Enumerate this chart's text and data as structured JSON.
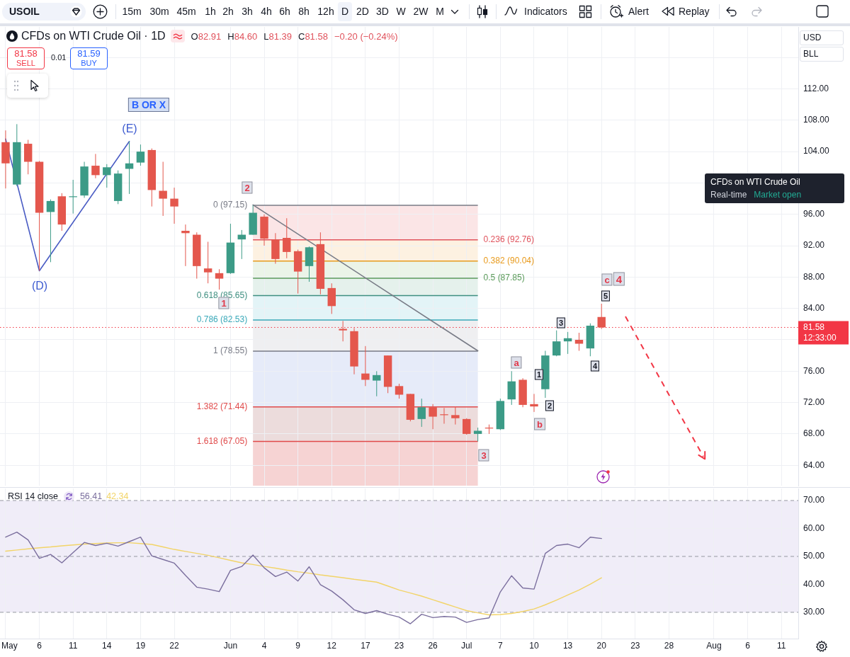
{
  "chart_data": [
    {
      "type": "candlestick",
      "title": "CFDs on WTI Crude Oil · 1D",
      "categories": [
        null,
        null,
        null,
        null,
        null,
        null,
        null,
        null,
        null,
        null,
        null,
        null,
        null,
        null,
        null,
        null,
        null,
        null,
        null,
        null,
        null,
        null,
        null,
        null,
        null,
        null,
        null,
        null,
        null,
        null,
        null,
        null,
        null,
        null,
        null,
        null,
        null,
        null,
        null,
        null,
        null,
        null,
        null,
        null,
        null,
        null,
        null,
        null,
        null,
        null,
        null,
        null,
        null,
        null,
        null,
        null,
        null,
        null,
        null,
        null,
        null,
        null,
        null,
        null,
        null,
        null,
        null,
        null,
        null,
        null,
        null
      ],
      "ohlc": [
        [
          105.2,
          106.7,
          99.3,
          102.5
        ],
        [
          99.8,
          107.5,
          99.6,
          105.2
        ],
        [
          105.0,
          105.5,
          101.1,
          102.7
        ],
        [
          102.7,
          102.8,
          88.8,
          96.2
        ],
        [
          96.3,
          97.9,
          89.9,
          97.7
        ],
        [
          98.3,
          98.7,
          93.9,
          94.7
        ],
        [
          98.2,
          100.4,
          96.1,
          98.3
        ],
        [
          98.4,
          102.7,
          98.1,
          102.1
        ],
        [
          102.2,
          103.7,
          100.6,
          101.0
        ],
        [
          101.0,
          102.4,
          99.4,
          102.0
        ],
        [
          97.7,
          101.6,
          97.3,
          101.2
        ],
        [
          101.8,
          105.3,
          98.6,
          102.5
        ],
        [
          102.6,
          104.9,
          102.2,
          104.0
        ],
        [
          104.2,
          104.4,
          97.0,
          99.1
        ],
        [
          99.0,
          102.7,
          95.8,
          98.0
        ],
        [
          98.0,
          99.4,
          94.8,
          97.0
        ],
        [
          93.9,
          94.7,
          89.4,
          93.6
        ],
        [
          93.4,
          93.7,
          87.8,
          89.4
        ],
        [
          89.1,
          92.5,
          87.2,
          88.6
        ],
        [
          88.5,
          89.0,
          86.4,
          87.8
        ],
        [
          88.5,
          94.8,
          88.4,
          92.4
        ],
        [
          92.8,
          94.0,
          90.3,
          93.4
        ],
        [
          93.4,
          97.15,
          93.4,
          96.2
        ],
        [
          95.7,
          96.0,
          92.0,
          92.9
        ],
        [
          92.8,
          93.6,
          89.7,
          90.3
        ],
        [
          93.0,
          95.5,
          90.4,
          91.2
        ],
        [
          91.3,
          91.5,
          85.9,
          88.7
        ],
        [
          89.4,
          91.9,
          87.4,
          91.8
        ],
        [
          92.2,
          93.7,
          85.8,
          86.5
        ],
        [
          86.6,
          87.2,
          83.3,
          84.3
        ],
        [
          81.4,
          82.4,
          79.8,
          81.2
        ],
        [
          81.1,
          81.5,
          75.6,
          76.6
        ],
        [
          75.7,
          79.2,
          74.1,
          74.9
        ],
        [
          74.8,
          76.0,
          72.8,
          75.5
        ],
        [
          78.0,
          78.0,
          73.2,
          74.0
        ],
        [
          74.1,
          74.4,
          72.5,
          73.0
        ],
        [
          73.1,
          73.1,
          69.6,
          69.8
        ],
        [
          69.9,
          72.5,
          68.9,
          71.4
        ],
        [
          71.4,
          71.8,
          68.6,
          70.2
        ],
        [
          70.5,
          71.3,
          69.3,
          70.4
        ],
        [
          70.4,
          71.5,
          69.2,
          70.0
        ],
        [
          69.9,
          70.0,
          67.9,
          68.0
        ],
        [
          68.0,
          68.8,
          67.05,
          68.4
        ],
        [
          68.8,
          69.2,
          68.0,
          68.7
        ],
        [
          68.6,
          72.5,
          68.5,
          72.2
        ],
        [
          72.4,
          76.0,
          71.7,
          74.7
        ],
        [
          74.9,
          75.1,
          71.4,
          71.7
        ],
        [
          71.8,
          73.1,
          70.8,
          71.5
        ],
        [
          73.7,
          78.6,
          72.6,
          78.0
        ],
        [
          78.0,
          81.2,
          77.9,
          79.8
        ],
        [
          79.8,
          81.0,
          78.2,
          80.2
        ],
        [
          80.0,
          80.9,
          78.6,
          79.5
        ],
        [
          78.9,
          82.1,
          77.9,
          81.8
        ],
        [
          82.91,
          84.6,
          81.39,
          81.58
        ],
        null,
        null,
        null,
        null,
        null,
        null,
        null,
        null,
        null,
        null,
        null,
        null,
        null,
        null,
        null,
        null,
        null
      ],
      "colors": [
        "#e4574d",
        "#3c9b87",
        "#e4574d",
        "#e4574d",
        "#3c9b87",
        "#e4574d",
        "#3c9b87",
        "#3c9b87",
        "#e4574d",
        "#3c9b87",
        "#3c9b87",
        "#3c9b87",
        "#3c9b87",
        "#e4574d",
        "#e4574d",
        "#e4574d",
        "#e4574d",
        "#e4574d",
        "#e4574d",
        "#e4574d",
        "#3c9b87",
        "#3c9b87",
        "#3c9b87",
        "#e4574d",
        "#e4574d",
        "#e4574d",
        "#e4574d",
        "#3c9b87",
        "#e4574d",
        "#e4574d",
        "#e4574d",
        "#e4574d",
        "#e4574d",
        "#3c9b87",
        "#e4574d",
        "#e4574d",
        "#e4574d",
        "#3c9b87",
        "#e4574d",
        "#e4574d",
        "#e4574d",
        "#e4574d",
        "#3c9b87",
        "#e4574d",
        "#3c9b87",
        "#3c9b87",
        "#e4574d",
        "#e4574d",
        "#3c9b87",
        "#3c9b87",
        "#3c9b87",
        "#e4574d",
        "#3c9b87",
        "#e4574d",
        null,
        null,
        null,
        null,
        null,
        null,
        null,
        null,
        null,
        null,
        null,
        null,
        null,
        null,
        null,
        null,
        null
      ],
      "series": [
        {
          "type": "line",
          "values": [
            null,
            null,
            null,
            null,
            null,
            null,
            null,
            null,
            null,
            null,
            null,
            null,
            null,
            null,
            null,
            null,
            null,
            null,
            null,
            null,
            null,
            null,
            97.2,
            null,
            null,
            null,
            null,
            null,
            null,
            null,
            null,
            null,
            null,
            null,
            null,
            null,
            null,
            null,
            null,
            null,
            null,
            null,
            78.6,
            null,
            null,
            null,
            null,
            null,
            null,
            null,
            null,
            null,
            null,
            null,
            null,
            null,
            null,
            null,
            null,
            null,
            null,
            null,
            null,
            null,
            null,
            null,
            null,
            null,
            null,
            null,
            null
          ],
          "color": "#787b86"
        },
        {
          "type": "line",
          "values": [
            105.6,
            null,
            null,
            88.8,
            null,
            null,
            null,
            null,
            null,
            null,
            null,
            105.3,
            null,
            null,
            null,
            null,
            null,
            null,
            null,
            null,
            null,
            null,
            null,
            null,
            null,
            null,
            null,
            null,
            null,
            null,
            null,
            null,
            null,
            null,
            null,
            null,
            null,
            null,
            null,
            null,
            null,
            null,
            null,
            null,
            null,
            null,
            null,
            null,
            null,
            null,
            null,
            null,
            null,
            null,
            null,
            null,
            null,
            null,
            null,
            null,
            null,
            null,
            null,
            null,
            null,
            null,
            null,
            null,
            null,
            null,
            null
          ],
          "color": "#4a5cc4"
        }
      ],
      "ylim": [
        61.4,
        119.9
      ],
      "yticks": [
        {
          "value": 64,
          "label": "64.00"
        },
        {
          "value": 68,
          "label": "68.00"
        },
        {
          "value": 72,
          "label": "72.00"
        },
        {
          "value": 76,
          "label": "76.00"
        },
        {
          "value": 80,
          "label": null
        },
        {
          "value": 84,
          "label": "84.00"
        },
        {
          "value": 88,
          "label": "88.00"
        },
        {
          "value": 92,
          "label": "92.00"
        },
        {
          "value": 96,
          "label": "96.00"
        },
        {
          "value": 100,
          "label": null
        },
        {
          "value": 104,
          "label": "104.00"
        },
        {
          "value": 108,
          "label": "108.00"
        },
        {
          "value": 112,
          "label": "112.00"
        },
        {
          "value": 116,
          "label": null
        }
      ],
      "tick_labels": "y",
      "grid": true,
      "bands": [
        {
          "axis": "y",
          "from": 97.15,
          "to": 92.76,
          "color": "#fbe5e6"
        },
        {
          "axis": "y",
          "from": 92.76,
          "to": 90.04,
          "color": "#fdf1e1"
        },
        {
          "axis": "y",
          "from": 90.04,
          "to": 87.85,
          "color": "#ebf4e8"
        },
        {
          "axis": "y",
          "from": 87.85,
          "to": 85.65,
          "color": "#e5f1ec"
        },
        {
          "axis": "y",
          "from": 85.65,
          "to": 82.53,
          "color": "#e3f4f7"
        },
        {
          "axis": "y",
          "from": 82.53,
          "to": 78.55,
          "color": "#efeff1"
        },
        {
          "axis": "y",
          "from": 78.55,
          "to": 71.44,
          "color": "#e6ebf9"
        },
        {
          "axis": "y",
          "from": 71.44,
          "to": 67.05,
          "color": "#ecdcdc"
        },
        {
          "axis": "y",
          "from": 67.05,
          "to": 61.4,
          "color": "#f6d3d3"
        }
      ],
      "ref_lines": [
        {
          "axis": "y",
          "value": 97.15,
          "label": "0 (97.15)",
          "color": "#787b86"
        },
        {
          "axis": "y",
          "value": 92.76,
          "label": "0.236 (92.76)",
          "color": "#e0525c"
        },
        {
          "axis": "y",
          "value": 90.04,
          "label": "0.382 (90.04)",
          "color": "#e89a1c"
        },
        {
          "axis": "y",
          "value": 87.85,
          "label": "0.5 (87.85)",
          "color": "#5a9a5a"
        },
        {
          "axis": "y",
          "value": 85.65,
          "label": "0.618 (85.65)",
          "color": "#3f8f80"
        },
        {
          "axis": "y",
          "value": 82.53,
          "label": "0.786 (82.53)",
          "color": "#3aa9b9"
        },
        {
          "axis": "y",
          "value": 78.55,
          "label": "1 (78.55)",
          "color": "#787b86"
        },
        {
          "axis": "y",
          "value": 71.44,
          "label": "1.382 (71.44)",
          "color": "#e04a4a"
        },
        {
          "axis": "y",
          "value": 67.05,
          "label": "1.618 (67.05)",
          "color": "#e04a4a"
        },
        {
          "axis": "y",
          "value": 81.58,
          "label": "81.58",
          "color": "#f23645",
          "line_style": "dotted"
        }
      ],
      "annotations": [
        "USOIL",
        "15m",
        "30m",
        "45m",
        "1h",
        "2h",
        "3h",
        "4h",
        "6h",
        "8h",
        "12h",
        "D",
        "2D",
        "3D",
        "W",
        "2W",
        "M",
        "Indicators",
        "Alert",
        "Replay",
        "O82.91",
        "H84.60",
        "L81.39",
        "C81.58",
        "−0.20 (−0.24%)",
        "81.58",
        "SELL",
        "0.01",
        "81.59",
        "BUY",
        "USD",
        "BLL",
        "CFDs on WTI Crude Oil",
        "Real-time",
        "Market open",
        "12:33:00",
        "B OR X",
        "(E)",
        "(D)",
        "2",
        "1",
        "3",
        "a",
        "b",
        "c",
        "4",
        "1",
        "2",
        "3",
        "4",
        "5"
      ]
    },
    {
      "type": "line",
      "title": "RSI 14 close",
      "categories": [
        "May",
        null,
        null,
        "6",
        null,
        null,
        "11",
        null,
        null,
        "14",
        null,
        null,
        "19",
        null,
        null,
        "22",
        null,
        null,
        null,
        null,
        "Jun",
        null,
        null,
        "4",
        null,
        null,
        "9",
        null,
        null,
        "12",
        null,
        null,
        "17",
        null,
        null,
        "23",
        null,
        null,
        "26",
        null,
        null,
        "Jul",
        null,
        null,
        "7",
        null,
        null,
        "10",
        null,
        null,
        "13",
        null,
        null,
        "20",
        null,
        null,
        "23",
        null,
        null,
        "28",
        null,
        null,
        null,
        "Aug",
        null,
        null,
        "6",
        null,
        null,
        "11",
        null
      ],
      "series": [
        {
          "values": [
            56.9,
            58.7,
            55.9,
            49.3,
            50.7,
            47.7,
            51.4,
            55.0,
            53.9,
            54.7,
            53.7,
            55.3,
            56.9,
            50.2,
            48.9,
            47.6,
            43.2,
            39.0,
            38.3,
            37.4,
            45.0,
            46.4,
            50.5,
            45.9,
            42.8,
            44.4,
            41.2,
            46.3,
            39.9,
            37.6,
            34.5,
            30.9,
            29.6,
            30.6,
            29.3,
            28.3,
            25.9,
            29.3,
            28.1,
            28.5,
            28.3,
            26.4,
            27.4,
            28.0,
            37.3,
            43.1,
            38.7,
            38.3,
            51.1,
            53.9,
            54.4,
            53.1,
            56.9,
            56.41,
            null,
            null,
            null,
            null,
            null,
            null,
            null,
            null,
            null,
            null,
            null,
            null,
            null,
            null,
            null,
            null,
            null
          ],
          "color": "#7b6f9e"
        },
        {
          "values": [
            51.9,
            52.3,
            52.7,
            53.1,
            53.4,
            53.8,
            54.1,
            54.4,
            54.6,
            54.8,
            54.9,
            54.9,
            54.6,
            54.3,
            53.4,
            52.5,
            51.8,
            51.1,
            50.4,
            49.5,
            48.6,
            47.7,
            47.1,
            46.4,
            45.8,
            45.1,
            44.5,
            44.0,
            43.4,
            42.9,
            42.4,
            41.8,
            41.3,
            40.8,
            39.4,
            38.0,
            36.9,
            35.8,
            34.5,
            33.2,
            31.9,
            30.6,
            29.8,
            29.1,
            29.2,
            29.6,
            30.3,
            31.2,
            32.7,
            34.4,
            36.2,
            38.0,
            40.1,
            42.34,
            null,
            null,
            null,
            null,
            null,
            null,
            null,
            null,
            null,
            null,
            null,
            null,
            null,
            null,
            null,
            null,
            null
          ],
          "color": "#f2d468"
        }
      ],
      "ylim": [
        20.6,
        74.3
      ],
      "yticks": [
        {
          "value": 30,
          "label": "30.00"
        },
        {
          "value": 40,
          "label": "40.00"
        },
        {
          "value": 50,
          "label": "50.00"
        },
        {
          "value": 60,
          "label": "60.00"
        },
        {
          "value": 70,
          "label": "70.00"
        }
      ],
      "grid": true,
      "bands": [
        {
          "axis": "y",
          "from": 30,
          "to": 70,
          "color": "#f0edf8"
        }
      ],
      "ref_lines": [
        {
          "axis": "y",
          "value": 70,
          "color": "#9598a1",
          "line_style": "dashed"
        },
        {
          "axis": "y",
          "value": 50,
          "color": "#9598a1",
          "line_style": "dashed"
        },
        {
          "axis": "y",
          "value": 30,
          "color": "#9598a1",
          "line_style": "dashed"
        }
      ],
      "annotations": [
        "56.41",
        "42.34"
      ]
    }
  ]
}
